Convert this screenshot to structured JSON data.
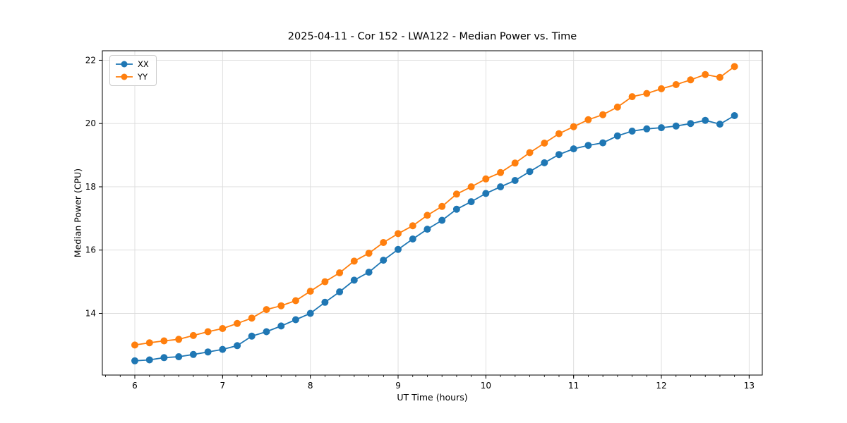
{
  "chart_data": {
    "type": "line",
    "title": "2025-04-11 - Cor 152 - LWA122 - Median Power vs. Time",
    "xlabel": "UT Time (hours)",
    "ylabel": "Median Power (CPU)",
    "xlim": [
      5.63,
      13.15
    ],
    "ylim": [
      12.05,
      22.3
    ],
    "x_ticks": [
      6,
      7,
      8,
      9,
      10,
      11,
      12,
      13
    ],
    "y_ticks": [
      14,
      16,
      18,
      20,
      22
    ],
    "x_minor_step": 0.16667,
    "grid": true,
    "grid_color": "#dcdcdc",
    "legend_position": "upper left",
    "marker": "o",
    "x": [
      6.0,
      6.167,
      6.333,
      6.5,
      6.667,
      6.833,
      7.0,
      7.167,
      7.333,
      7.5,
      7.667,
      7.833,
      8.0,
      8.167,
      8.333,
      8.5,
      8.667,
      8.833,
      9.0,
      9.167,
      9.333,
      9.5,
      9.667,
      9.833,
      10.0,
      10.167,
      10.333,
      10.5,
      10.667,
      10.833,
      11.0,
      11.167,
      11.333,
      11.5,
      11.667,
      11.833,
      12.0,
      12.167,
      12.333,
      12.5,
      12.667,
      12.833
    ],
    "series": [
      {
        "name": "XX",
        "color": "#1f77b4",
        "values": [
          12.5,
          12.53,
          12.6,
          12.63,
          12.7,
          12.78,
          12.86,
          12.98,
          13.28,
          13.42,
          13.6,
          13.8,
          14.0,
          14.35,
          14.68,
          15.05,
          15.3,
          15.68,
          16.02,
          16.35,
          16.66,
          16.94,
          17.29,
          17.53,
          17.79,
          18.0,
          18.2,
          18.48,
          18.76,
          19.02,
          19.2,
          19.31,
          19.39,
          19.61,
          19.76,
          19.83,
          19.87,
          19.92,
          20.0,
          20.1,
          19.98,
          20.25
        ]
      },
      {
        "name": "YY",
        "color": "#ff7f0e",
        "values": [
          13.0,
          13.07,
          13.13,
          13.18,
          13.3,
          13.42,
          13.52,
          13.68,
          13.85,
          14.12,
          14.24,
          14.4,
          14.7,
          15.0,
          15.28,
          15.65,
          15.9,
          16.24,
          16.52,
          16.77,
          17.1,
          17.38,
          17.77,
          18.0,
          18.25,
          18.45,
          18.75,
          19.08,
          19.38,
          19.68,
          19.9,
          20.12,
          20.28,
          20.52,
          20.85,
          20.95,
          21.1,
          21.23,
          21.38,
          21.55,
          21.46,
          21.8
        ]
      }
    ]
  }
}
